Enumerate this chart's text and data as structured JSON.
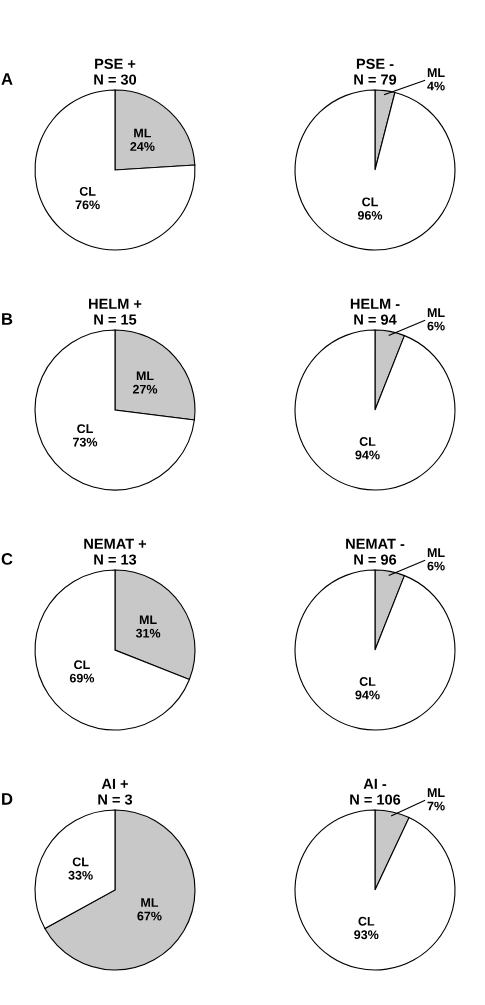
{
  "chart_data": [
    {
      "type": "pie",
      "title": "PSE +\nN = 30",
      "annotations": [
        "A"
      ],
      "categories": [
        "ML",
        "CL"
      ],
      "values": [
        24,
        76
      ],
      "value_labels": [
        "24%",
        "76%"
      ],
      "colors": [
        "#c8c8c8",
        "#ffffff"
      ]
    },
    {
      "type": "pie",
      "title": "PSE -\nN = 79",
      "categories": [
        "ML",
        "CL"
      ],
      "values": [
        4,
        96
      ],
      "value_labels": [
        "4%",
        "96%"
      ],
      "colors": [
        "#c8c8c8",
        "#ffffff"
      ]
    },
    {
      "type": "pie",
      "title": "HELM +\nN = 15",
      "annotations": [
        "B"
      ],
      "categories": [
        "ML",
        "CL"
      ],
      "values": [
        27,
        73
      ],
      "value_labels": [
        "27%",
        "73%"
      ],
      "colors": [
        "#c8c8c8",
        "#ffffff"
      ]
    },
    {
      "type": "pie",
      "title": "HELM -\nN = 94",
      "categories": [
        "ML",
        "CL"
      ],
      "values": [
        6,
        94
      ],
      "value_labels": [
        "6%",
        "94%"
      ],
      "colors": [
        "#c8c8c8",
        "#ffffff"
      ]
    },
    {
      "type": "pie",
      "title": "NEMAT +\nN = 13",
      "annotations": [
        "C"
      ],
      "categories": [
        "ML",
        "CL"
      ],
      "values": [
        31,
        69
      ],
      "value_labels": [
        "31%",
        "69%"
      ],
      "colors": [
        "#c8c8c8",
        "#ffffff"
      ]
    },
    {
      "type": "pie",
      "title": "NEMAT -\nN = 96",
      "categories": [
        "ML",
        "CL"
      ],
      "values": [
        6,
        94
      ],
      "value_labels": [
        "6%",
        "94%"
      ],
      "colors": [
        "#c8c8c8",
        "#ffffff"
      ]
    },
    {
      "type": "pie",
      "title": "AI +\nN = 3",
      "annotations": [
        "D"
      ],
      "categories": [
        "ML",
        "CL"
      ],
      "values": [
        67,
        33
      ],
      "value_labels": [
        "67%",
        "33%"
      ],
      "colors": [
        "#c8c8c8",
        "#ffffff"
      ]
    },
    {
      "type": "pie",
      "title": "AI -\nN = 106",
      "categories": [
        "ML",
        "CL"
      ],
      "values": [
        7,
        93
      ],
      "value_labels": [
        "7%",
        "93%"
      ],
      "colors": [
        "#c8c8c8",
        "#ffffff"
      ]
    }
  ]
}
